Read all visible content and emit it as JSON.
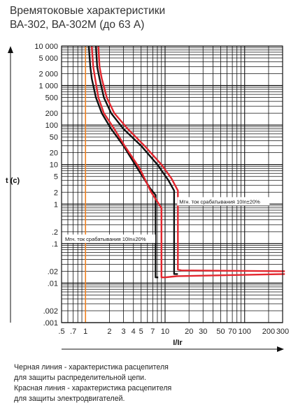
{
  "title": {
    "line1": "Времятоковые характеристики",
    "line2": "ВА-302, ВА-302М (до 63 А)"
  },
  "notes": {
    "line1": "Черная линия - характеристика расцепителя",
    "line2": "для защиты распределительной цепи.",
    "line3": "Красная линия - характеристика расцепителя",
    "line4": "для защиты электродвигателей."
  },
  "chart_data": {
    "type": "line",
    "title": "Времятоковые характеристики ВА-302, ВА-302М (до 63 А)",
    "xlabel": "I/Ir",
    "ylabel": "t (c)",
    "x_scale": "log",
    "y_scale": "log",
    "xlim": [
      0.5,
      300
    ],
    "ylim": [
      0.001,
      10000
    ],
    "x_ticks": [
      0.5,
      0.7,
      1,
      2,
      3,
      4,
      5,
      7,
      10,
      20,
      30,
      50,
      70,
      100,
      200,
      300
    ],
    "x_tick_labels": [
      ".5",
      ".7",
      "1",
      "2",
      "3",
      "4",
      "5",
      "7",
      "10",
      "20",
      "30",
      "50",
      "70",
      "100",
      "200",
      "300"
    ],
    "y_ticks": [
      0.001,
      0.002,
      0.01,
      0.02,
      0.1,
      0.2,
      1,
      2,
      5,
      10,
      20,
      50,
      100,
      200,
      500,
      1000,
      2000,
      5000,
      10000
    ],
    "y_tick_labels": [
      ".001",
      ".002",
      ".01",
      ".02",
      ".1",
      ".2",
      "1",
      "2",
      "5",
      "10",
      "20",
      "50",
      "100",
      "200",
      "500",
      "1 000",
      "2 000",
      "5 000",
      "10 000"
    ],
    "grid": true,
    "reference_line": {
      "x": 1,
      "color": "#f08020"
    },
    "colors": {
      "black": "#111111",
      "red": "#e3262e",
      "grid": "#111111"
    },
    "series": [
      {
        "color": "#111111",
        "values": [
          [
            1.1,
            10000
          ],
          [
            1.15,
            3000
          ],
          [
            1.2,
            1500
          ],
          [
            1.35,
            500
          ],
          [
            1.6,
            200
          ],
          [
            2.1,
            80
          ],
          [
            3,
            30
          ],
          [
            4.5,
            8
          ],
          [
            6.5,
            2.5
          ],
          [
            7.6,
            1.7
          ],
          [
            7.6,
            0.014
          ],
          [
            8.2,
            0.014
          ]
        ]
      },
      {
        "color": "#111111",
        "values": [
          [
            1.35,
            10000
          ],
          [
            1.4,
            3000
          ],
          [
            1.5,
            1500
          ],
          [
            1.7,
            500
          ],
          [
            2.1,
            200
          ],
          [
            3,
            80
          ],
          [
            5,
            30
          ],
          [
            8,
            10
          ],
          [
            11,
            4
          ],
          [
            13,
            2.2
          ],
          [
            13,
            0.017
          ],
          [
            14.5,
            0.017
          ]
        ]
      },
      {
        "color": "#e3262e",
        "values": [
          [
            1.2,
            10000
          ],
          [
            1.25,
            3000
          ],
          [
            1.32,
            1500
          ],
          [
            1.45,
            500
          ],
          [
            1.7,
            200
          ],
          [
            2.3,
            80
          ],
          [
            3.1,
            30
          ],
          [
            4.8,
            8
          ],
          [
            6.7,
            2
          ],
          [
            9,
            0.8
          ],
          [
            9,
            0.014
          ],
          [
            10,
            0.014
          ],
          [
            14,
            0.015
          ],
          [
            320,
            0.017
          ]
        ]
      },
      {
        "color": "#e3262e",
        "values": [
          [
            1.45,
            10000
          ],
          [
            1.5,
            3000
          ],
          [
            1.6,
            1500
          ],
          [
            1.85,
            500
          ],
          [
            2.3,
            200
          ],
          [
            3.4,
            80
          ],
          [
            5.5,
            30
          ],
          [
            9,
            10
          ],
          [
            12,
            4.5
          ],
          [
            14.5,
            2.2
          ],
          [
            14.5,
            0.022
          ],
          [
            16,
            0.021
          ],
          [
            320,
            0.02
          ]
        ]
      }
    ],
    "annotations": [
      {
        "text": "Мгн. ток срабатывания 10In±20%",
        "position": "right-of-curves-upper"
      },
      {
        "text": "Мгн. ток срабатывания 10In±20%",
        "position": "left-of-curves-lower"
      }
    ]
  }
}
